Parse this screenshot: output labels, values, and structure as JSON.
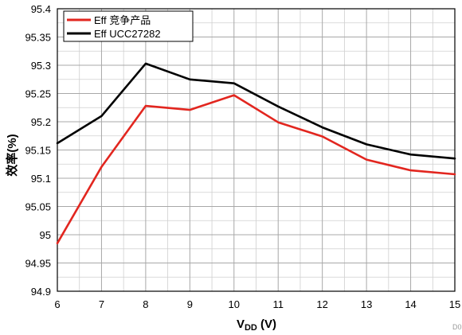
{
  "chart_data": {
    "type": "line",
    "xlabel_main": "V",
    "xlabel_sub": "DD",
    "xlabel_unit": " (V)",
    "ylabel": "效率(%)",
    "xlim": [
      6,
      15
    ],
    "ylim": [
      94.9,
      95.4
    ],
    "x_ticks": [
      6,
      7,
      8,
      9,
      10,
      11,
      12,
      13,
      14,
      15
    ],
    "y_ticks": [
      94.9,
      94.95,
      95,
      95.05,
      95.1,
      95.15,
      95.2,
      95.25,
      95.3,
      95.35,
      95.4
    ],
    "y_tick_labels": [
      "94.9",
      "94.95",
      "95",
      "95.05",
      "95.1",
      "95.15",
      "95.2",
      "95.25",
      "95.3",
      "95.35",
      "95.4"
    ],
    "grid": true,
    "legend_position": "top-left",
    "series": [
      {
        "name": "Eff 竞争产品",
        "color": "#e2261f",
        "x": [
          6,
          7,
          8,
          9,
          10,
          11,
          12,
          13,
          14,
          15
        ],
        "values": [
          94.985,
          95.12,
          95.228,
          95.221,
          95.247,
          95.199,
          95.174,
          95.133,
          95.114,
          95.107
        ]
      },
      {
        "name": "Eff UCC27282",
        "color": "#000000",
        "x": [
          6,
          7,
          8,
          9,
          10,
          11,
          12,
          13,
          14,
          15
        ],
        "values": [
          95.162,
          95.21,
          95.303,
          95.275,
          95.268,
          95.227,
          95.19,
          95.16,
          95.142,
          95.135
        ]
      }
    ]
  },
  "watermark": "D0"
}
